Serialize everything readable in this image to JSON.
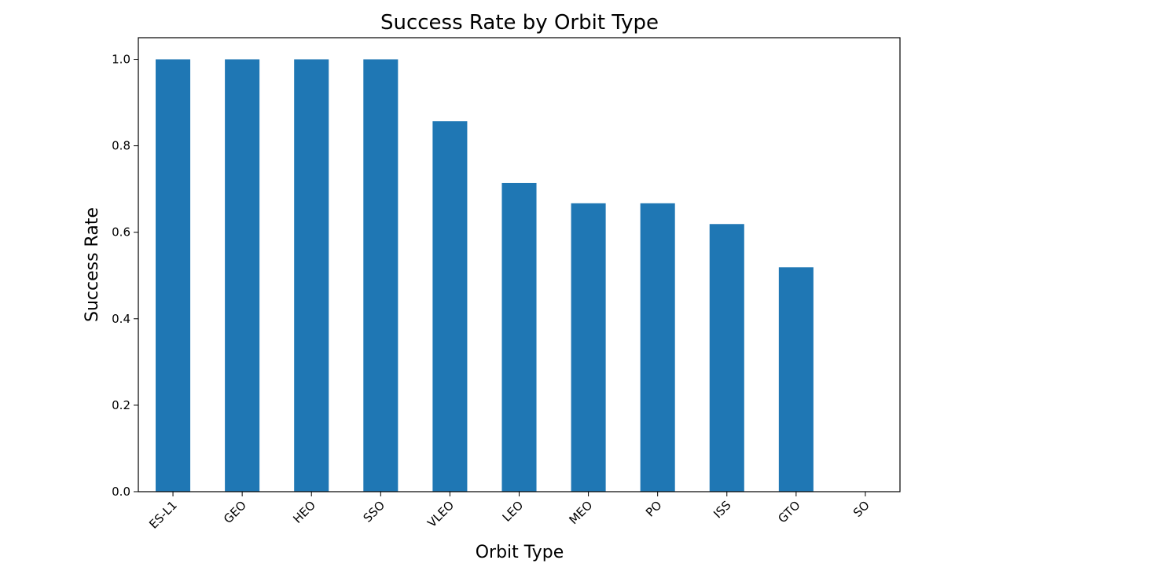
{
  "chart_data": {
    "type": "bar",
    "title": "Success Rate by Orbit Type",
    "xlabel": "Orbit Type",
    "ylabel": "Success Rate",
    "categories": [
      "ES-L1",
      "GEO",
      "HEO",
      "SSO",
      "VLEO",
      "LEO",
      "MEO",
      "PO",
      "ISS",
      "GTO",
      "SO"
    ],
    "values": [
      1.0,
      1.0,
      1.0,
      1.0,
      0.857,
      0.714,
      0.667,
      0.667,
      0.619,
      0.519,
      0.0
    ],
    "ylim": [
      0,
      1.05
    ],
    "yticks": [
      "0.0",
      "0.2",
      "0.4",
      "0.6",
      "0.8",
      "1.0"
    ],
    "grid": false,
    "bar_color": "#1f77b4"
  }
}
